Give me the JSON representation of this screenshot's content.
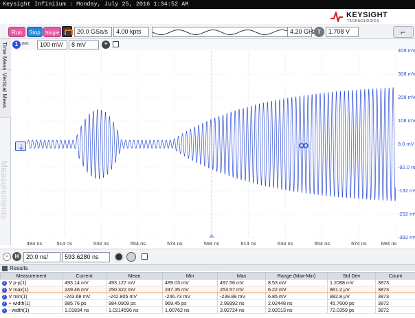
{
  "window": {
    "title": "Keysight Infiniium : Monday, July 25, 2016 1:34:52 AM"
  },
  "brand": {
    "name": "KEYSIGHT",
    "sub": "TECHNOLOGIES"
  },
  "controls": {
    "run_label": "Run",
    "stop_label": "Stop",
    "single_label": "Single",
    "sample_rate": "20.0 GSa/s",
    "memory_depth": "4.00 kpts",
    "bandwidth": "4.20 GHz",
    "trigger_badge": "T",
    "trigger_level": "1.708 V"
  },
  "tabs": {
    "time_meas": "Time Meas",
    "vertical_meas": "Vertical Meas",
    "measurements": "Measurements"
  },
  "channel": {
    "number": "1",
    "impedance": "1MΩ",
    "scale": "100 mV/",
    "offset": "8 mV",
    "add": "+"
  },
  "chart_data": {
    "type": "line",
    "series": [
      {
        "color": "#2f4fd6"
      }
    ],
    "y_ticks": [
      "408 mV",
      "308 mV",
      "208 mV",
      "108 mV",
      "8.0 mV",
      "-92.0 mV",
      "-192 mV",
      "-292 mV",
      "-392 mV"
    ],
    "x_ticks": [
      "494 ns",
      "514 ns",
      "534 ns",
      "554 ns",
      "574 ns",
      "594 ns",
      "614 ns",
      "634 ns",
      "654 ns",
      "674 ns",
      "694 ns"
    ],
    "ylim": [
      -392,
      408
    ],
    "xlim": [
      494,
      694
    ],
    "grid": true,
    "segments": [
      {
        "x_start": 494,
        "x_end": 519,
        "amplitude_mV": 18,
        "period_ns": 2.2
      },
      {
        "x_start": 519,
        "x_end": 546,
        "amplitude_mV": 150,
        "period_ns": 2.2,
        "shape": "burst"
      },
      {
        "x_start": 546,
        "x_end": 573,
        "amplitude_mV": 18,
        "period_ns": 2.2
      },
      {
        "x_start": 573,
        "x_end": 694,
        "amplitude_mV": 245,
        "period_ns": 2.2,
        "shape": "ramp",
        "start_amplitude_mV": 20
      }
    ]
  },
  "horizontal": {
    "badge": "H",
    "scale": "20.0 ns/",
    "position": "593.6280 ns"
  },
  "results": {
    "title": "Results",
    "columns": [
      "Measurement",
      "Current",
      "Mean",
      "Min",
      "Max",
      "Range (Max-Min)",
      "Std Dev",
      "Count"
    ],
    "rows": [
      {
        "name": "V p-p(1)",
        "cells": [
          "493.14 mV",
          "493.127 mV",
          "489.03 mV",
          "497.56 mV",
          "8.53 mV",
          "1.2088 mV",
          "3873"
        ]
      },
      {
        "name": "V max(1)",
        "cells": [
          "249.46 mV",
          "250.322 mV",
          "247.35 mV",
          "253.57 mV",
          "6.22 mV",
          "861.2 µV",
          "3873"
        ]
      },
      {
        "name": "V min(1)",
        "cells": [
          "-243.68 mV",
          "-242.805 mV",
          "-246.73 mV",
          "-239.89 mV",
          "6.85 mV",
          "882.8 µV",
          "3873"
        ]
      },
      {
        "name": "+ width(1)",
        "cells": [
          "985.76 ps",
          "984.0909 ps",
          "969.45 ps",
          "2.99392 ns",
          "2.02448 ns",
          "45.7600 ps",
          "3872"
        ]
      },
      {
        "name": "- width(1)",
        "cells": [
          "1.01834 ns",
          "1.0214596 ns",
          "1.00762 ns",
          "3.02724 ns",
          "2.02013 ns",
          "72.0359 ps",
          "3872"
        ]
      }
    ],
    "selected_row": 1
  }
}
